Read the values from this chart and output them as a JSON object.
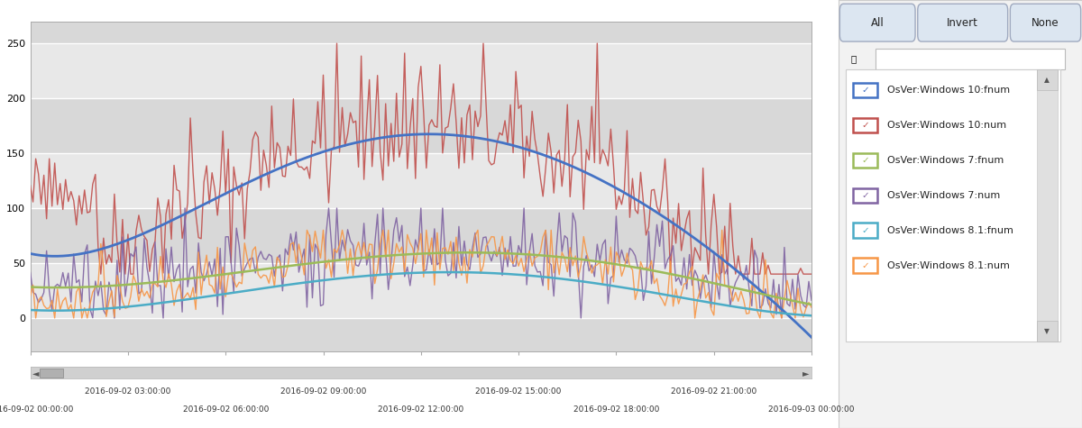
{
  "ylim": [
    -30,
    270
  ],
  "yticks": [
    0,
    50,
    100,
    150,
    200,
    250
  ],
  "xtick_positions": [
    0,
    36,
    72,
    108,
    144,
    180,
    216,
    252,
    288
  ],
  "xtick_labels_row1": [
    "",
    "2016-09-02 03:00:00",
    "",
    "2016-09-02 09:00:00",
    "",
    "2016-09-02 15:00:00",
    "",
    "2016-09-02 21:00:00",
    ""
  ],
  "xtick_labels_row2": [
    "2016-09-02 00:00:00",
    "",
    "2016-09-02 06:00:00",
    "",
    "2016-09-02 12:00:00",
    "",
    "2016-09-02 18:00:00",
    "",
    "2016-09-03 00:00:00"
  ],
  "series_colors": {
    "win10_fnum": "#4472C4",
    "win10_num": "#C0504D",
    "win7_fnum": "#9BBB59",
    "win7_num": "#8064A2",
    "win81_fnum": "#4BACC6",
    "win81_num": "#F79646"
  },
  "series_lw": {
    "win10_fnum": 2.0,
    "win10_num": 1.0,
    "win7_fnum": 1.8,
    "win7_num": 1.0,
    "win81_fnum": 1.8,
    "win81_num": 1.0
  },
  "legend_entries": [
    {
      "label": "OsVer:Windows 10:fnum",
      "color": "#4472C4"
    },
    {
      "label": "OsVer:Windows 10:num",
      "color": "#C0504D"
    },
    {
      "label": "OsVer:Windows 7:fnum",
      "color": "#9BBB59"
    },
    {
      "label": "OsVer:Windows 7:num",
      "color": "#8064A2"
    },
    {
      "label": "OsVer:Windows 8.1:fnum",
      "color": "#4BACC6"
    },
    {
      "label": "OsVer:Windows 8.1:num",
      "color": "#F79646"
    }
  ],
  "fig_bg": "#f2f2f2",
  "plot_bg": "#e8e8e8",
  "band_colors_alt": [
    "#d8d8d8",
    "#e8e8e8"
  ],
  "white_line_color": "#ffffff",
  "win10_fnum_kx": [
    0,
    40,
    80,
    110,
    130,
    160,
    200,
    250,
    288
  ],
  "win10_fnum_ky": [
    58,
    78,
    118,
    152,
    170,
    165,
    135,
    65,
    -18
  ],
  "win7_fnum_kx": [
    0,
    30,
    60,
    90,
    130,
    170,
    210,
    260,
    288
  ],
  "win7_fnum_ky": [
    28,
    30,
    36,
    45,
    57,
    60,
    50,
    28,
    12
  ],
  "win81_fnum_kx": [
    0,
    30,
    70,
    110,
    150,
    200,
    250,
    288
  ],
  "win81_fnum_ky": [
    7,
    10,
    20,
    35,
    43,
    33,
    15,
    2
  ],
  "scrollbar_bg": "#d0d0d0",
  "panel_bg": "#f2f2f2",
  "btn_bg": "#dce6f1",
  "btn_border": "#a0aac0",
  "listbox_bg": "#ffffff",
  "listbox_border": "#cccccc",
  "scrollbar_track": "#e0e0e0",
  "scrollbar_thumb": "#c0c0c0"
}
